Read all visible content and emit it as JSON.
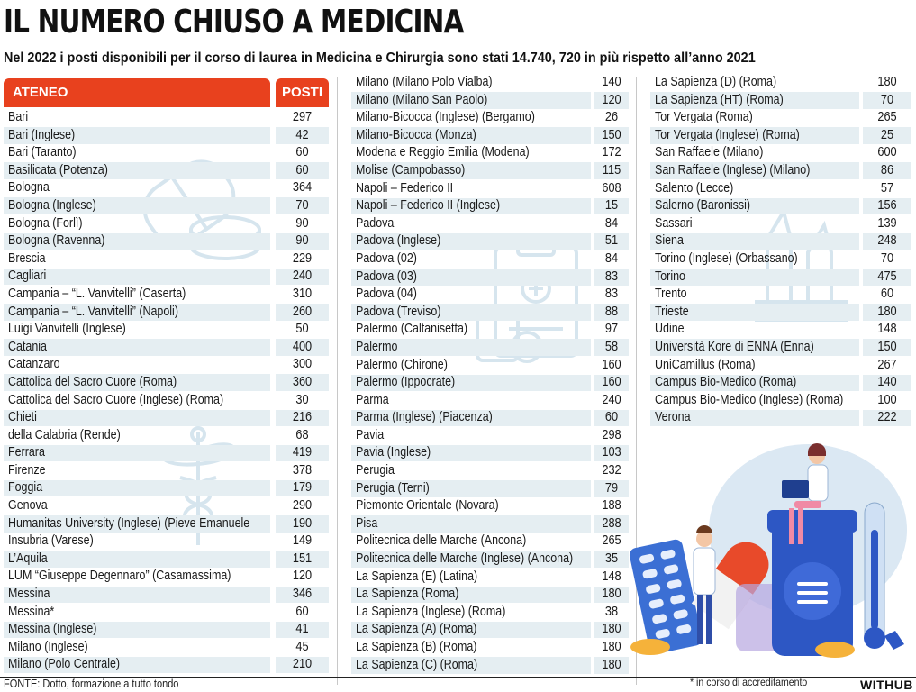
{
  "title": "IL NUMERO CHIUSO A MEDICINA",
  "subtitle": "Nel 2022 i posti disponibili per il corso di laurea in Medicina e Chirurgia sono stati 14.740, 720 in più rispetto all’anno 2021",
  "headers": {
    "ateneo": "ATENEO",
    "posti": "POSTI"
  },
  "columns": [
    [
      {
        "name": "Bari",
        "posti": "297"
      },
      {
        "name": "Bari (Inglese)",
        "posti": "42"
      },
      {
        "name": "Bari (Taranto)",
        "posti": "60"
      },
      {
        "name": "Basilicata (Potenza)",
        "posti": "60"
      },
      {
        "name": "Bologna",
        "posti": "364"
      },
      {
        "name": "Bologna (Inglese)",
        "posti": "70"
      },
      {
        "name": "Bologna (Forlì)",
        "posti": "90"
      },
      {
        "name": "Bologna (Ravenna)",
        "posti": "90"
      },
      {
        "name": "Brescia",
        "posti": "229"
      },
      {
        "name": "Cagliari",
        "posti": "240"
      },
      {
        "name": "Campania – “L. Vanvitelli” (Caserta)",
        "posti": "310"
      },
      {
        "name": "Campania – “L. Vanvitelli” (Napoli)",
        "posti": "260"
      },
      {
        "name": "Luigi Vanvitelli (Inglese)",
        "posti": "50"
      },
      {
        "name": "Catania",
        "posti": "400"
      },
      {
        "name": "Catanzaro",
        "posti": "300"
      },
      {
        "name": "Cattolica del Sacro Cuore (Roma)",
        "posti": "360"
      },
      {
        "name": "Cattolica del Sacro Cuore (Inglese) (Roma)",
        "posti": "30"
      },
      {
        "name": "Chieti",
        "posti": "216"
      },
      {
        "name": "della Calabria (Rende)",
        "posti": "68"
      },
      {
        "name": "Ferrara",
        "posti": "419"
      },
      {
        "name": "Firenze",
        "posti": "378"
      },
      {
        "name": "Foggia",
        "posti": "179"
      },
      {
        "name": "Genova",
        "posti": "290"
      },
      {
        "name": "Humanitas University (Inglese) (Pieve Emanuele",
        "posti": "190"
      },
      {
        "name": "Insubria (Varese)",
        "posti": "149"
      },
      {
        "name": "L’Aquila",
        "posti": "151"
      },
      {
        "name": "LUM “Giuseppe Degennaro” (Casamassima)",
        "posti": "120"
      },
      {
        "name": "Messina",
        "posti": "346"
      },
      {
        "name": "Messina*",
        "posti": "60"
      },
      {
        "name": "Messina (Inglese)",
        "posti": "41"
      },
      {
        "name": "Milano (Inglese)",
        "posti": "45"
      },
      {
        "name": "Milano (Polo Centrale)",
        "posti": "210"
      }
    ],
    [
      {
        "name": "Milano (Milano Polo Vialba)",
        "posti": "140"
      },
      {
        "name": "Milano (Milano San Paolo)",
        "posti": "120"
      },
      {
        "name": "Milano-Bicocca (Inglese) (Bergamo)",
        "posti": "26"
      },
      {
        "name": "Milano-Bicocca (Monza)",
        "posti": "150"
      },
      {
        "name": "Modena e Reggio Emilia (Modena)",
        "posti": "172"
      },
      {
        "name": "Molise (Campobasso)",
        "posti": "115"
      },
      {
        "name": "Napoli – Federico II",
        "posti": "608"
      },
      {
        "name": "Napoli – Federico II (Inglese)",
        "posti": "15"
      },
      {
        "name": "Padova",
        "posti": "84"
      },
      {
        "name": "Padova (Inglese)",
        "posti": "51"
      },
      {
        "name": "Padova (02)",
        "posti": "84"
      },
      {
        "name": "Padova (03)",
        "posti": "83"
      },
      {
        "name": "Padova (04)",
        "posti": "83"
      },
      {
        "name": "Padova (Treviso)",
        "posti": "88"
      },
      {
        "name": "Palermo (Caltanisetta)",
        "posti": "97"
      },
      {
        "name": "Palermo",
        "posti": "58"
      },
      {
        "name": "Palermo (Chirone)",
        "posti": "160"
      },
      {
        "name": "Palermo (Ippocrate)",
        "posti": "160"
      },
      {
        "name": "Parma",
        "posti": "240"
      },
      {
        "name": "Parma (Inglese) (Piacenza)",
        "posti": "60"
      },
      {
        "name": "Pavia",
        "posti": "298"
      },
      {
        "name": "Pavia (Inglese)",
        "posti": "103"
      },
      {
        "name": "Perugia",
        "posti": "232"
      },
      {
        "name": "Perugia (Terni)",
        "posti": "79"
      },
      {
        "name": "Piemonte Orientale (Novara)",
        "posti": "188"
      },
      {
        "name": "Pisa",
        "posti": "288"
      },
      {
        "name": "Politecnica delle Marche (Ancona)",
        "posti": "265"
      },
      {
        "name": "Politecnica delle Marche (Inglese) (Ancona)",
        "posti": "35"
      },
      {
        "name": "La Sapienza (E) (Latina)",
        "posti": "148"
      },
      {
        "name": "La Sapienza (Roma)",
        "posti": "180"
      },
      {
        "name": "La Sapienza (Inglese) (Roma)",
        "posti": "38"
      },
      {
        "name": "La Sapienza (A) (Roma)",
        "posti": "180"
      },
      {
        "name": "La Sapienza (B) (Roma)",
        "posti": "180"
      },
      {
        "name": "La Sapienza (C) (Roma)",
        "posti": "180"
      }
    ],
    [
      {
        "name": "La Sapienza (D) (Roma)",
        "posti": "180"
      },
      {
        "name": "La Sapienza (HT) (Roma)",
        "posti": "70"
      },
      {
        "name": "Tor Vergata (Roma)",
        "posti": "265"
      },
      {
        "name": "Tor Vergata (Inglese) (Roma)",
        "posti": "25"
      },
      {
        "name": "San Raffaele (Milano)",
        "posti": "600"
      },
      {
        "name": "San Raffaele (Inglese) (Milano)",
        "posti": "86"
      },
      {
        "name": "Salento (Lecce)",
        "posti": "57"
      },
      {
        "name": "Salerno (Baronissi)",
        "posti": "156"
      },
      {
        "name": "Sassari",
        "posti": "139"
      },
      {
        "name": "Siena",
        "posti": "248"
      },
      {
        "name": "Torino (Inglese) (Orbassano)",
        "posti": "70"
      },
      {
        "name": "Torino",
        "posti": "475"
      },
      {
        "name": "Trento",
        "posti": "60"
      },
      {
        "name": "Trieste",
        "posti": "180"
      },
      {
        "name": "Udine",
        "posti": "148"
      },
      {
        "name": "Università Kore di ENNA (Enna)",
        "posti": "150"
      },
      {
        "name": "UniCamillus (Roma)",
        "posti": "267"
      },
      {
        "name": "Campus Bio-Medico (Roma)",
        "posti": "140"
      },
      {
        "name": "Campus Bio-Medico (Inglese) (Roma)",
        "posti": "100"
      },
      {
        "name": "Verona",
        "posti": "222"
      }
    ]
  ],
  "source": "FONTE: Dotto, formazione a tutto tondo",
  "note": "* in corso di accreditamento",
  "brand": "WITHUB",
  "colors": {
    "accent": "#e8411e",
    "row_shade": "#e5eef2",
    "icon_tint": "#d6e5ee"
  },
  "decorations": [
    "pill-bottle-icon",
    "caduceus-icon",
    "clipboard-icon",
    "ampoule-icon",
    "medical-illustration"
  ]
}
